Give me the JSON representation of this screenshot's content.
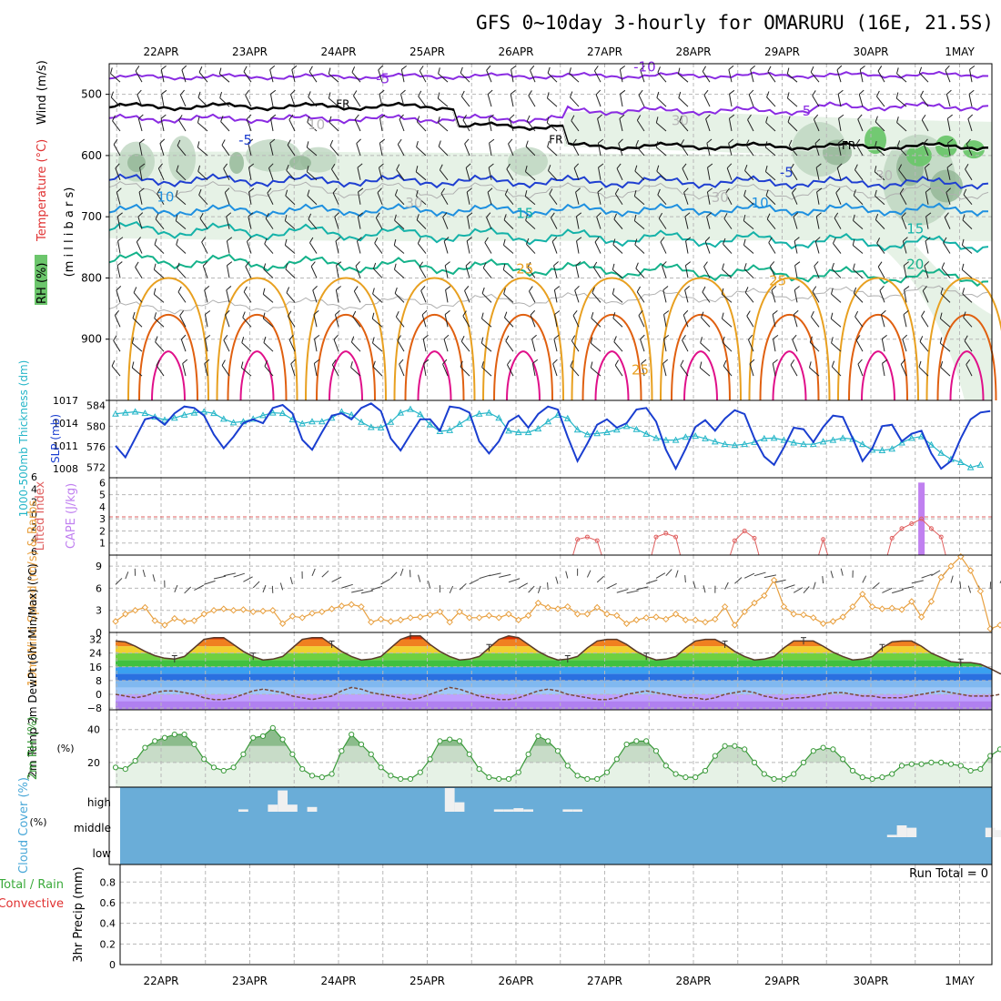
{
  "title": "GFS 0~10day 3-hourly for OMARURU (16E, 21.5S)",
  "date_labels": [
    "22APR",
    "23APR",
    "24APR",
    "25APR",
    "26APR",
    "27APR",
    "28APR",
    "29APR",
    "30APR",
    "1MAY"
  ],
  "colors": {
    "frame": "#000000",
    "grid": "#b8b8b8",
    "rh_light": "#e6f2e6",
    "rh_mid": "#b9d3bc",
    "rh_dark": "#91b595",
    "rh_green": "#6cc66c",
    "temp_purple": "#8a2be2",
    "temp_blue": "#1f3fd1",
    "temp_lblue": "#1e90e0",
    "temp_teal": "#14b2a8",
    "temp_gteal": "#14b28a",
    "temp_orange": "#e8a020",
    "temp_dorange": "#e06010",
    "temp_magenta": "#e0108a",
    "thick": "#25b6c8",
    "slp": "#1a3ed0",
    "cape": "#c080f0",
    "li": "#e06060",
    "wind10": "#e8a040",
    "rh2m": "#3a9a3a",
    "cloud": "#6aadd8",
    "precip_total": "#3aaa3a",
    "precip_conv": "#e03030"
  },
  "chart_data": [
    {
      "id": "upper_air",
      "type": "heatmap",
      "ylabel_parts": [
        "RH (%)",
        "Temperature (°C)",
        "Wind (m/s)",
        "(m i l l i b a r s)"
      ],
      "y_ticks": [
        500,
        600,
        700,
        800,
        900,
        1000
      ],
      "ylim": [
        450,
        1000
      ],
      "contour_labels": [
        {
          "text": "-10",
          "day": 5.45,
          "p": 463,
          "color_key": "temp_purple"
        },
        {
          "text": "-5",
          "day": 2.5,
          "p": 482,
          "color_key": "temp_purple"
        },
        {
          "text": "-5",
          "day": 7.25,
          "p": 535,
          "color_key": "temp_purple"
        },
        {
          "text": "FR",
          "day": 2.05,
          "p": 522,
          "color_key": "frame"
        },
        {
          "text": "FR",
          "day": 4.45,
          "p": 580,
          "color_key": "frame"
        },
        {
          "text": "FR",
          "day": 7.75,
          "p": 590,
          "color_key": "frame"
        },
        {
          "text": "10",
          "day": 1.75,
          "p": 557,
          "color_key": "grid"
        },
        {
          "text": "30",
          "day": 5.85,
          "p": 550,
          "color_key": "grid"
        },
        {
          "text": "30",
          "day": 2.85,
          "p": 685,
          "color_key": "grid"
        },
        {
          "text": "30",
          "day": 6.3,
          "p": 676,
          "color_key": "grid"
        },
        {
          "text": "30",
          "day": 8.15,
          "p": 640,
          "color_key": "grid"
        },
        {
          "text": "-5",
          "day": 0.95,
          "p": 582,
          "color_key": "temp_blue"
        },
        {
          "text": "-5",
          "day": 7.05,
          "p": 635,
          "color_key": "temp_blue"
        },
        {
          "text": "10",
          "day": 0.05,
          "p": 675,
          "color_key": "temp_lblue"
        },
        {
          "text": "10",
          "day": 6.75,
          "p": 685,
          "color_key": "temp_lblue"
        },
        {
          "text": "15",
          "day": 4.1,
          "p": 702,
          "color_key": "temp_teal"
        },
        {
          "text": "15",
          "day": 8.5,
          "p": 727,
          "color_key": "temp_teal"
        },
        {
          "text": "20",
          "day": 8.5,
          "p": 785,
          "color_key": "temp_gteal"
        },
        {
          "text": "25",
          "day": 4.1,
          "p": 793,
          "color_key": "temp_orange"
        },
        {
          "text": "25",
          "day": 6.95,
          "p": 812,
          "color_key": "temp_orange"
        },
        {
          "text": "25",
          "day": 5.4,
          "p": 958,
          "color_key": "temp_orange"
        }
      ]
    },
    {
      "id": "thickness_slp",
      "type": "line",
      "ylabel": "1000-500mb Thickness (dm)",
      "ylabel2": "SLP (mb)",
      "y_ticks_left": [
        572,
        576,
        580,
        584
      ],
      "y_ticks_right": [
        1008,
        1011,
        1014,
        1017
      ],
      "ylim": [
        570,
        585
      ],
      "ylim2": [
        1006.8,
        1017
      ],
      "series": [
        {
          "key": "thickness",
          "values": [
            582.4,
            582.6,
            582.8,
            582.5,
            581.8,
            581.2,
            581.6,
            582.2,
            582.6,
            582.8,
            582.5,
            581.4,
            580.7,
            580.9,
            581.4,
            582.1,
            582.6,
            582.5,
            581.3,
            580.5,
            580.9,
            580.9,
            581.6,
            582.8,
            582.2,
            580.8,
            579.8,
            579.7,
            580.8,
            582.6,
            583.3,
            582.3,
            580.3,
            579.0,
            579.2,
            580.4,
            581.6,
            582.4,
            582.6,
            581.6,
            579.1,
            578.8,
            578.8,
            579.5,
            580.9,
            582.2,
            581.5,
            579.3,
            578.4,
            578.6,
            578.8,
            579.3,
            580.0,
            579.4,
            578.5,
            577.7,
            577.3,
            577.3,
            577.9,
            578.1,
            577.6,
            577.0,
            576.5,
            576.3,
            576.5,
            576.9,
            577.6,
            577.7,
            577.3,
            576.8,
            576.5,
            576.5,
            577.0,
            577.3,
            577.7,
            577.5,
            576.5,
            575.4,
            575.3,
            575.6,
            576.8,
            577.7,
            578.0,
            576.4,
            574.8,
            573.6,
            573.0,
            572.0,
            572.5
          ]
        },
        {
          "key": "slp",
          "values": [
            1011.0,
            1009.5,
            1012.0,
            1014.5,
            1014.8,
            1013.8,
            1015.3,
            1016.2,
            1016.0,
            1015.0,
            1012.5,
            1010.7,
            1012.2,
            1014.0,
            1014.5,
            1014.0,
            1016.0,
            1016.4,
            1015.3,
            1011.8,
            1010.5,
            1012.8,
            1015.0,
            1015.3,
            1014.5,
            1016.0,
            1016.6,
            1015.6,
            1012.0,
            1010.4,
            1012.5,
            1014.5,
            1014.5,
            1013.0,
            1016.2,
            1016.0,
            1015.4,
            1011.6,
            1010.0,
            1011.6,
            1014.2,
            1015.0,
            1013.4,
            1015.2,
            1016.2,
            1015.8,
            1012.2,
            1009.0,
            1011.3,
            1013.8,
            1014.5,
            1013.4,
            1014.0,
            1015.8,
            1016.0,
            1014.2,
            1010.5,
            1008.0,
            1010.6,
            1013.5,
            1014.4,
            1013.0,
            1014.6,
            1015.7,
            1015.2,
            1012.0,
            1009.6,
            1008.5,
            1010.8,
            1013.4,
            1013.2,
            1011.5,
            1013.5,
            1015.0,
            1014.8,
            1012.0,
            1009.0,
            1010.7,
            1013.6,
            1013.8,
            1011.6,
            1012.6,
            1013.0,
            1010.0,
            1008.0,
            1009.0,
            1012.0,
            1014.5,
            1015.4,
            1015.6
          ]
        }
      ]
    },
    {
      "id": "cape_li",
      "type": "bar",
      "ylabel": "Lifted Index",
      "ylabel2": "CAPE (J/kg)",
      "y_ticks_left": [
        "6",
        "4",
        "2",
        "0",
        "2",
        "4",
        "6"
      ],
      "y_ticks_right": [
        "1",
        "2",
        "3",
        "4",
        "5",
        "6"
      ],
      "series": [
        {
          "key": "cape",
          "values": [
            {
              "index": 82,
              "value": 6
            }
          ]
        },
        {
          "key": "lifted_index",
          "values": [
            {
              "index": 47,
              "value": 1.3
            },
            {
              "index": 48,
              "value": 1.5
            },
            {
              "index": 49,
              "value": 1.2
            },
            {
              "index": 55,
              "value": 1.5
            },
            {
              "index": 56,
              "value": 1.8
            },
            {
              "index": 57,
              "value": 1.5
            },
            {
              "index": 63,
              "value": 1.2
            },
            {
              "index": 64,
              "value": 2.0
            },
            {
              "index": 65,
              "value": 1.4
            },
            {
              "index": 72,
              "value": 1.3
            },
            {
              "index": 79,
              "value": 1.4
            },
            {
              "index": 80,
              "value": 2.2
            },
            {
              "index": 81,
              "value": 2.6
            },
            {
              "index": 82,
              "value": 3.0
            },
            {
              "index": 83,
              "value": 2.2
            },
            {
              "index": 84,
              "value": 1.5
            }
          ]
        }
      ]
    },
    {
      "id": "wind10m",
      "type": "line",
      "ylabel": "10m Wind Speed (m/s) & Barbs",
      "y_ticks": [
        0,
        3,
        6,
        9
      ],
      "ylim": [
        0,
        10.5
      ],
      "series": [
        {
          "key": "wind_speed",
          "values": [
            1.5,
            2.5,
            3.0,
            3.4,
            1.6,
            1.0,
            1.9,
            1.5,
            1.6,
            2.5,
            3.0,
            3.2,
            3.0,
            3.1,
            2.8,
            2.9,
            3.0,
            1.2,
            2.2,
            2.0,
            2.6,
            2.8,
            3.2,
            3.6,
            3.8,
            3.5,
            1.4,
            1.8,
            1.5,
            1.7,
            2.0,
            2.1,
            2.4,
            2.8,
            1.4,
            2.8,
            2.0,
            2.0,
            2.3,
            2.0,
            2.5,
            1.7,
            2.3,
            4.0,
            3.4,
            3.2,
            3.5,
            2.5,
            2.5,
            3.4,
            2.5,
            2.3,
            1.2,
            1.7,
            2.0,
            2.1,
            1.8,
            2.5,
            1.7,
            1.7,
            1.4,
            1.8,
            3.5,
            1.0,
            2.8,
            4.0,
            5.0,
            7.1,
            3.5,
            2.5,
            2.4,
            2.0,
            1.2,
            1.5,
            2.1,
            3.5,
            5.2,
            3.5,
            3.2,
            3.3,
            3.1,
            4.2,
            2.1,
            4.2,
            7.5,
            9.0,
            10.3,
            8.4,
            5.6,
            0.5,
            1.0,
            1.2,
            1.6,
            1.3
          ]
        }
      ]
    },
    {
      "id": "temp2m",
      "type": "area",
      "ylabel": "2m Temp 2m DewPt (6hr Min/Max) (°C)",
      "y_ticks": [
        -8,
        0,
        8,
        16,
        24,
        32
      ],
      "ylim": [
        -9,
        36
      ],
      "series": [
        {
          "key": "temp",
          "values": [
            31,
            30.5,
            28,
            25,
            22.5,
            21,
            20.5,
            22,
            27,
            32,
            33,
            33,
            29,
            25,
            22,
            20,
            20.5,
            22,
            27,
            32,
            33,
            33,
            29,
            25,
            22,
            20,
            20.5,
            22,
            27,
            32,
            34,
            34,
            29,
            25,
            22,
            20,
            20.5,
            22,
            27,
            32,
            34,
            33,
            29,
            25,
            22,
            20,
            20.5,
            22,
            27,
            31,
            32,
            32,
            29,
            25,
            22,
            20,
            20.5,
            22,
            27,
            31,
            32,
            32,
            29,
            25,
            22,
            20,
            20.5,
            22,
            27,
            31,
            31,
            31,
            28,
            24.5,
            22,
            20,
            20.5,
            22,
            27,
            30.5,
            31,
            31,
            28,
            24,
            21.5,
            19,
            18.5,
            18.5,
            17.5,
            15,
            12,
            11,
            12,
            13
          ]
        },
        {
          "key": "dewpoint",
          "values": [
            0,
            -1,
            -2,
            -1,
            1,
            2,
            2,
            1,
            0,
            -2,
            -3,
            -3,
            -2,
            0,
            2,
            3,
            2,
            1,
            -1,
            -2,
            -3,
            -2,
            -1,
            2,
            4,
            3,
            1,
            0,
            -1,
            -2,
            -3,
            -2,
            0,
            2,
            4,
            3,
            1,
            -1,
            -2,
            -3,
            -3,
            -2,
            0,
            2,
            3,
            2,
            0,
            -1,
            -2,
            -3,
            -3,
            -2,
            0,
            1,
            2,
            1,
            0,
            -1,
            -2,
            -2,
            -3,
            -2,
            0,
            1,
            2,
            1,
            -1,
            -2,
            -3,
            -2,
            -2,
            -1,
            0,
            1,
            1,
            0,
            -1,
            -1,
            -2,
            -2,
            -2,
            -1,
            0,
            1,
            2,
            1,
            0,
            -1,
            -1,
            -1,
            0,
            1,
            1,
            2
          ]
        }
      ]
    },
    {
      "id": "rh2m",
      "type": "line",
      "ylabel": "2m RH (%)",
      "y_ticks": [
        20,
        40
      ],
      "ylim": [
        5,
        52
      ],
      "series": [
        {
          "key": "rh",
          "values": [
            17,
            16,
            21,
            29,
            33,
            35,
            37,
            37,
            31,
            22,
            17,
            15,
            17,
            25,
            35,
            36,
            41,
            34,
            25,
            16,
            12,
            11,
            13,
            27,
            37,
            31,
            25,
            17,
            12,
            10,
            10,
            14,
            22,
            33,
            34,
            33,
            25,
            16,
            11,
            10,
            10,
            14,
            25,
            36,
            33,
            27,
            18,
            12,
            10,
            10,
            14,
            22,
            31,
            33,
            33,
            27,
            18,
            13,
            11,
            11,
            15,
            24,
            30,
            30,
            28,
            20,
            13,
            10,
            10,
            13,
            20,
            27,
            29,
            28,
            22,
            15,
            11,
            10,
            11,
            13,
            18,
            19,
            19,
            20,
            20,
            19,
            18,
            15,
            16,
            24,
            28,
            31,
            46,
            39
          ]
        }
      ]
    },
    {
      "id": "cloud_cover",
      "type": "bar",
      "ylabel": "Cloud Cover (%)",
      "levels": [
        "high",
        "middle",
        "low"
      ],
      "series": [
        {
          "key": "high",
          "values": [
            {
              "index": 13,
              "value": 10
            },
            {
              "index": 16,
              "value": 30
            },
            {
              "index": 17,
              "value": 90
            },
            {
              "index": 18,
              "value": 30
            },
            {
              "index": 20,
              "value": 20
            },
            {
              "index": 34,
              "value": 100
            },
            {
              "index": 35,
              "value": 40
            },
            {
              "index": 39,
              "value": 10
            },
            {
              "index": 40,
              "value": 10
            },
            {
              "index": 41,
              "value": 15
            },
            {
              "index": 42,
              "value": 10
            },
            {
              "index": 46,
              "value": 10
            },
            {
              "index": 47,
              "value": 10
            }
          ]
        },
        {
          "key": "middle",
          "values": [
            {
              "index": 79,
              "value": 10
            },
            {
              "index": 80,
              "value": 50
            },
            {
              "index": 81,
              "value": 40
            },
            {
              "index": 89,
              "value": 40
            },
            {
              "index": 90,
              "value": 30
            },
            {
              "index": 91,
              "value": 30
            }
          ]
        }
      ]
    },
    {
      "id": "precip",
      "type": "bar",
      "ylabel": "3hr Precip (mm)",
      "ylabel_parts": [
        "Total / Rain",
        "Convective"
      ],
      "y_ticks": [
        "0",
        "0.2",
        "0.4",
        "0.6",
        "0.8"
      ],
      "ylim": [
        0,
        0.97
      ],
      "run_total": "Run Total = 0"
    }
  ]
}
